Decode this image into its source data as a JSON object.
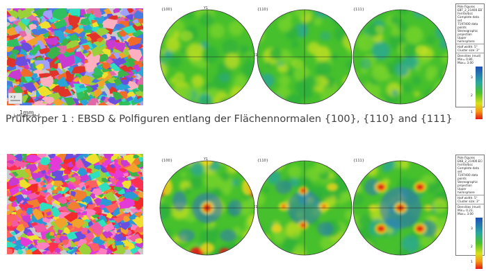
{
  "panel1": {
    "caption": "Prüfkörper 1 : EBSD & Polfiguren entlang der Flächennormalen {100}, {110} and {111}",
    "scale_label": "1mm",
    "pf_labels": [
      "{100}",
      "{110}",
      "{111}"
    ],
    "axis_top": "Y1",
    "axis_right": "X1",
    "legend": {
      "title": "Pole Figures",
      "sample": "EBT_2_21400.EBT_2_21400_EBa",
      "phase": "Ferrite/bcc",
      "lines": [
        "Complete data set",
        "7197400 data points",
        "Stereographic projection",
        "Upper hemisphere"
      ],
      "half_width": "Half width: 5°",
      "cluster": "Cluster size: 3°",
      "densities": "Densities (mud)",
      "minmax": "Min= 0.80, Max= 3.00",
      "ticks": [
        "3",
        "2",
        "1"
      ]
    }
  },
  "panel2": {
    "pf_labels": [
      "{100}",
      "{110}",
      "{111}"
    ],
    "axis_top": "Y1",
    "axis_right": "X1",
    "legend": {
      "title": "Pole Figures",
      "sample": "EKB_2_21400.ECB_2_21400_EBa",
      "phase": "Ferrite/bcc",
      "lines": [
        "Complete data set",
        "7197400 data points",
        "Stereographic projection",
        "Upper hemisphere"
      ],
      "half_width": "Half width: 5°",
      "cluster": "Cluster size: 3°",
      "densities": "Densities (mud)",
      "minmax": "Min= 0.23, Max= 3.00",
      "ticks": [
        "3",
        "2",
        "1"
      ]
    }
  },
  "colors": {
    "pf_green": "#3fbf2a",
    "pf_yellow": "#e8e21a",
    "pf_blue": "#2e6fc9",
    "pf_red": "#e02016",
    "caption_text": "#404040"
  }
}
